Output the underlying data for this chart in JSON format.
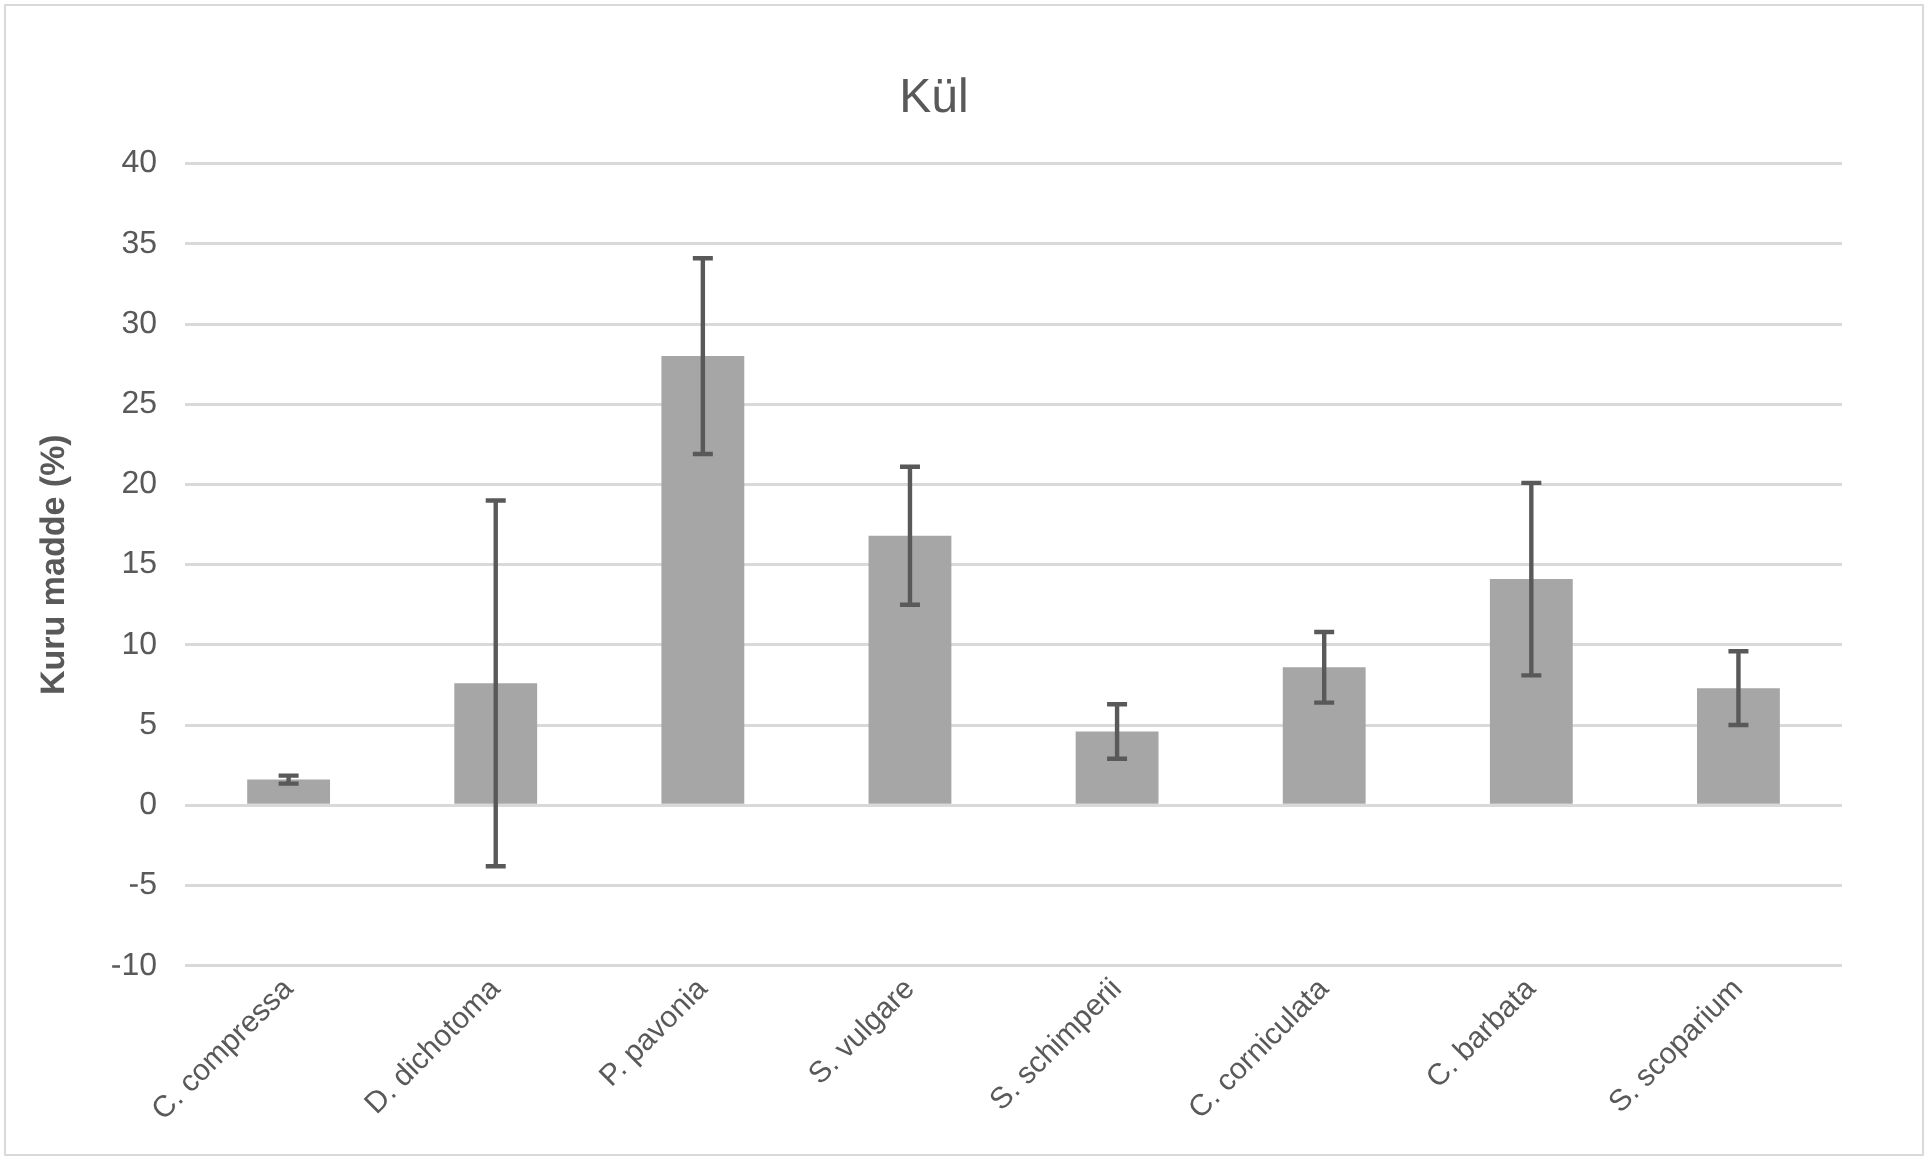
{
  "chart_data": {
    "type": "bar",
    "title": "Kül",
    "ylabel": "Kuru madde (%)",
    "categories": [
      "C. compressa",
      "D. dichotoma",
      "P. pavonia",
      "S. vulgare",
      "S. schimperii",
      "C. corniculata",
      "C. barbata",
      "S. scoparium"
    ],
    "values": [
      1.6,
      7.6,
      28,
      16.8,
      4.6,
      8.6,
      14.1,
      7.3
    ],
    "errors": [
      0.25,
      11.4,
      6.1,
      4.3,
      1.7,
      2.2,
      6.0,
      2.3
    ],
    "color": "#a6a6a6",
    "ylim": [
      -10,
      40
    ],
    "yticks": [
      -10,
      -5,
      0,
      5,
      10,
      15,
      20,
      25,
      30,
      35,
      40
    ],
    "grid": "y",
    "legend": false
  }
}
